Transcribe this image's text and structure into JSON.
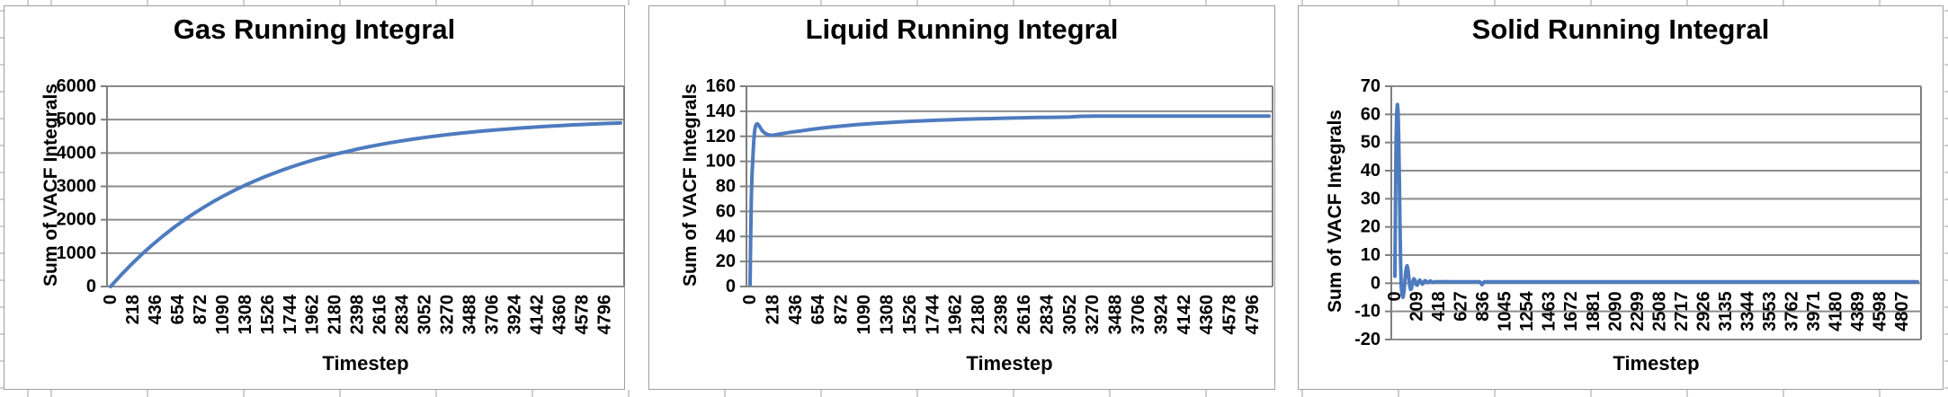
{
  "colors": {
    "series_blue": "#4E7BBF",
    "gridline": "#8b8b8b",
    "axis": "#7f7f7f",
    "text": "#000000",
    "panel_background": "#ffffff"
  },
  "chart_data": [
    {
      "type": "line",
      "title": "Gas Running Integral",
      "xlabel": "Timestep",
      "ylabel": "Sum of VACF Integrals",
      "ylim": [
        0,
        6000
      ],
      "ytick_step": 1000,
      "xlim": [
        0,
        4950
      ],
      "grid": true,
      "legend_position": "none",
      "x_tick_labels": [
        "0",
        "218",
        "436",
        "654",
        "872",
        "1090",
        "1308",
        "1526",
        "1744",
        "1962",
        "2180",
        "2398",
        "2616",
        "2834",
        "3052",
        "3270",
        "3488",
        "3706",
        "3924",
        "4142",
        "4360",
        "4578",
        "4796"
      ],
      "series": [
        {
          "color": "#4E7BBF",
          "points": [
            [
              0,
              0
            ],
            [
              100,
              342
            ],
            [
              200,
              660
            ],
            [
              300,
              957
            ],
            [
              400,
              1235
            ],
            [
              500,
              1494
            ],
            [
              600,
              1736
            ],
            [
              700,
              1961
            ],
            [
              800,
              2171
            ],
            [
              900,
              2366
            ],
            [
              1000,
              2549
            ],
            [
              1100,
              2719
            ],
            [
              1200,
              2878
            ],
            [
              1300,
              3026
            ],
            [
              1400,
              3164
            ],
            [
              1500,
              3293
            ],
            [
              1600,
              3413
            ],
            [
              1700,
              3525
            ],
            [
              1800,
              3629
            ],
            [
              1900,
              3726
            ],
            [
              2000,
              3817
            ],
            [
              2100,
              3895
            ],
            [
              2200,
              3980
            ],
            [
              2300,
              4047
            ],
            [
              2400,
              4121
            ],
            [
              2500,
              4185
            ],
            [
              2600,
              4244
            ],
            [
              2700,
              4299
            ],
            [
              2800,
              4351
            ],
            [
              2900,
              4398
            ],
            [
              3000,
              4443
            ],
            [
              3100,
              4485
            ],
            [
              3200,
              4524
            ],
            [
              3300,
              4560
            ],
            [
              3400,
              4593
            ],
            [
              3500,
              4625
            ],
            [
              3600,
              4654
            ],
            [
              3700,
              4681
            ],
            [
              3800,
              4707
            ],
            [
              3900,
              4730
            ],
            [
              4000,
              4752
            ],
            [
              4100,
              4773
            ],
            [
              4200,
              4792
            ],
            [
              4300,
              4810
            ],
            [
              4400,
              4827
            ],
            [
              4500,
              4842
            ],
            [
              4600,
              4857
            ],
            [
              4700,
              4870
            ],
            [
              4800,
              4883
            ],
            [
              4900,
              4894
            ],
            [
              4950,
              4900
            ]
          ]
        }
      ]
    },
    {
      "type": "line",
      "title": "Liquid Running Integral",
      "xlabel": "Timestep",
      "ylabel": "Sum of VACF Integrals",
      "ylim": [
        0,
        160
      ],
      "ytick_step": 20,
      "xlim": [
        0,
        4950
      ],
      "grid": true,
      "legend_position": "none",
      "x_tick_labels": [
        "0",
        "218",
        "436",
        "654",
        "872",
        "1090",
        "1308",
        "1526",
        "1744",
        "1962",
        "2180",
        "2398",
        "2616",
        "2834",
        "3052",
        "3270",
        "3488",
        "3706",
        "3924",
        "4142",
        "4360",
        "4578",
        "4796"
      ],
      "series": [
        {
          "color": "#4E7BBF",
          "points": [
            [
              0,
              1.5
            ],
            [
              6,
              40
            ],
            [
              12,
              70
            ],
            [
              18,
              88
            ],
            [
              24,
              98
            ],
            [
              30,
              108
            ],
            [
              36,
              117
            ],
            [
              42,
              123
            ],
            [
              50,
              127.5
            ],
            [
              60,
              129.6
            ],
            [
              70,
              130
            ],
            [
              85,
              128.6
            ],
            [
              100,
              126.5
            ],
            [
              120,
              124
            ],
            [
              145,
              122.3
            ],
            [
              170,
              121.3
            ],
            [
              200,
              120.8
            ],
            [
              230,
              121
            ],
            [
              270,
              121.6
            ],
            [
              310,
              122.2
            ],
            [
              360,
              122.9
            ],
            [
              420,
              123.6
            ],
            [
              480,
              124.3
            ],
            [
              550,
              125.1
            ],
            [
              620,
              125.9
            ],
            [
              700,
              126.7
            ],
            [
              780,
              127.4
            ],
            [
              860,
              128.1
            ],
            [
              940,
              128.7
            ],
            [
              1020,
              129.3
            ],
            [
              1100,
              129.8
            ],
            [
              1200,
              130.4
            ],
            [
              1300,
              130.9
            ],
            [
              1400,
              131.4
            ],
            [
              1500,
              131.8
            ],
            [
              1600,
              132.2
            ],
            [
              1700,
              132.6
            ],
            [
              1800,
              132.9
            ],
            [
              1900,
              133.2
            ],
            [
              2000,
              133.5
            ],
            [
              2150,
              133.9
            ],
            [
              2300,
              134.2
            ],
            [
              2450,
              134.5
            ],
            [
              2600,
              134.8
            ],
            [
              2750,
              135
            ],
            [
              2900,
              135.2
            ],
            [
              3050,
              135.4
            ],
            [
              3150,
              136
            ],
            [
              3300,
              136.1
            ],
            [
              3500,
              136.1
            ],
            [
              3800,
              136.1
            ],
            [
              4200,
              136.1
            ],
            [
              4600,
              136.1
            ],
            [
              4950,
              136.1
            ]
          ]
        }
      ]
    },
    {
      "type": "line",
      "title": "Solid Running Integral",
      "xlabel": "Timestep",
      "ylabel": "Sum of VACF Integrals",
      "ylim": [
        -20,
        70
      ],
      "ytick_step": 10,
      "xlim": [
        0,
        4950
      ],
      "x_labels_at": 0,
      "grid": true,
      "legend_position": "none",
      "x_tick_labels": [
        "0",
        "209",
        "418",
        "627",
        "836",
        "1045",
        "1254",
        "1463",
        "1672",
        "1881",
        "2090",
        "2299",
        "2508",
        "2717",
        "2926",
        "3135",
        "3344",
        "3553",
        "3762",
        "3971",
        "4180",
        "4389",
        "4598",
        "4807"
      ],
      "series": [
        {
          "color": "#4E7BBF",
          "points": [
            [
              0,
              2.5
            ],
            [
              6,
              30
            ],
            [
              12,
              52
            ],
            [
              18,
              61
            ],
            [
              24,
              63.5
            ],
            [
              30,
              61
            ],
            [
              36,
              52
            ],
            [
              42,
              38
            ],
            [
              48,
              22
            ],
            [
              54,
              8
            ],
            [
              60,
              -1
            ],
            [
              68,
              -4.2
            ],
            [
              76,
              -5
            ],
            [
              84,
              -3.5
            ],
            [
              92,
              -0.5
            ],
            [
              100,
              3
            ],
            [
              108,
              5.5
            ],
            [
              116,
              6.2
            ],
            [
              124,
              4.8
            ],
            [
              132,
              2
            ],
            [
              140,
              -0.8
            ],
            [
              148,
              -2.2
            ],
            [
              156,
              -2
            ],
            [
              164,
              -0.6
            ],
            [
              172,
              0.9
            ],
            [
              180,
              1.6
            ],
            [
              188,
              1.2
            ],
            [
              196,
              0.2
            ],
            [
              204,
              -0.6
            ],
            [
              212,
              -0.7
            ],
            [
              220,
              0
            ],
            [
              228,
              0.8
            ],
            [
              236,
              1.1
            ],
            [
              244,
              0.7
            ],
            [
              252,
              0.1
            ],
            [
              260,
              -0.3
            ],
            [
              268,
              -0.1
            ],
            [
              276,
              0.5
            ],
            [
              284,
              0.9
            ],
            [
              292,
              0.8
            ],
            [
              300,
              0.4
            ],
            [
              312,
              0.2
            ],
            [
              324,
              0.5
            ],
            [
              336,
              0.8
            ],
            [
              348,
              0.6
            ],
            [
              360,
              0.3
            ],
            [
              375,
              0.4
            ],
            [
              390,
              0.6
            ],
            [
              410,
              0.5
            ],
            [
              440,
              0.5
            ],
            [
              480,
              0.55
            ],
            [
              530,
              0.5
            ],
            [
              600,
              0.5
            ],
            [
              700,
              0.5
            ],
            [
              805,
              0.5
            ],
            [
              825,
              -0.5
            ],
            [
              845,
              0.5
            ],
            [
              1000,
              0.5
            ],
            [
              1300,
              0.5
            ],
            [
              1700,
              0.5
            ],
            [
              2200,
              0.5
            ],
            [
              2800,
              0.5
            ],
            [
              3500,
              0.5
            ],
            [
              4200,
              0.5
            ],
            [
              4950,
              0.5
            ]
          ]
        }
      ]
    }
  ]
}
